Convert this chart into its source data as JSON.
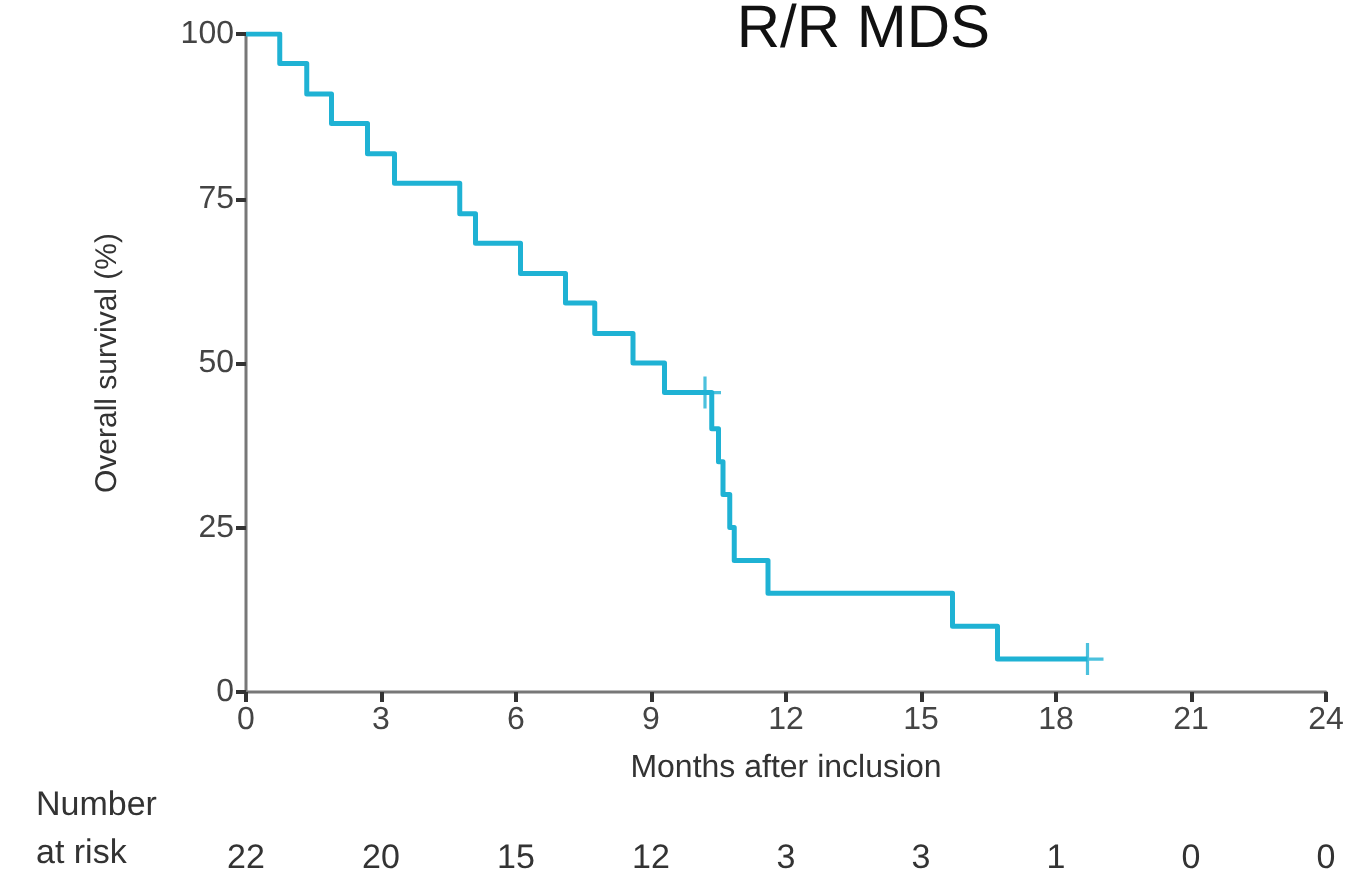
{
  "chart_data": {
    "type": "step",
    "title": "R/R MDS",
    "xlabel": "Months after inclusion",
    "ylabel": "Overall survival (%)",
    "xlim": [
      0,
      24
    ],
    "xticks": [
      0,
      3,
      6,
      9,
      12,
      15,
      18,
      21,
      24
    ],
    "ylim": [
      0,
      100
    ],
    "yticks": [
      0,
      25,
      50,
      75,
      100
    ],
    "grid": false,
    "series": [
      {
        "color": "#1fb2d4",
        "marker": "none",
        "x": [
          0,
          0.75,
          1.35,
          1.9,
          2.7,
          3.3,
          4.75,
          5.1,
          6.1,
          7.1,
          7.75,
          8.6,
          9.3,
          10.35,
          10.5,
          10.6,
          10.75,
          10.85,
          11.6,
          15.7,
          16.7,
          18.7
        ],
        "values": [
          100,
          95.5,
          90.9,
          86.4,
          81.8,
          77.3,
          72.7,
          68.2,
          63.6,
          59.1,
          54.5,
          50,
          45.5,
          40,
          35,
          30,
          25,
          20,
          15,
          10,
          5,
          5
        ]
      },
      {
        "type": "scatter",
        "color": "#1fb2d4",
        "marker": "cross",
        "x": [
          10.2,
          18.7
        ],
        "values": [
          45.5,
          5
        ]
      }
    ],
    "annotations": [
      "Number\nat risk",
      "22",
      "20",
      "15",
      "12",
      "3",
      "3",
      "1",
      "0",
      "0"
    ]
  }
}
